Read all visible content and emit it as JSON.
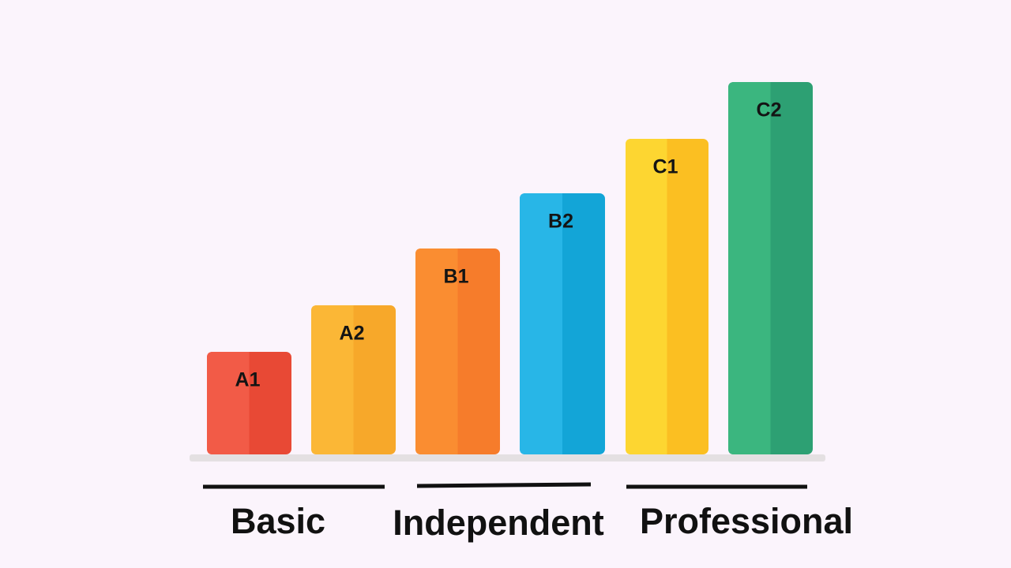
{
  "bars": [
    {
      "label": "A1"
    },
    {
      "label": "A2"
    },
    {
      "label": "B1"
    },
    {
      "label": "B2"
    },
    {
      "label": "C1"
    },
    {
      "label": "C2"
    }
  ],
  "groups": [
    {
      "label": "Basic"
    },
    {
      "label": "Independent"
    },
    {
      "label": "Professional"
    }
  ]
}
